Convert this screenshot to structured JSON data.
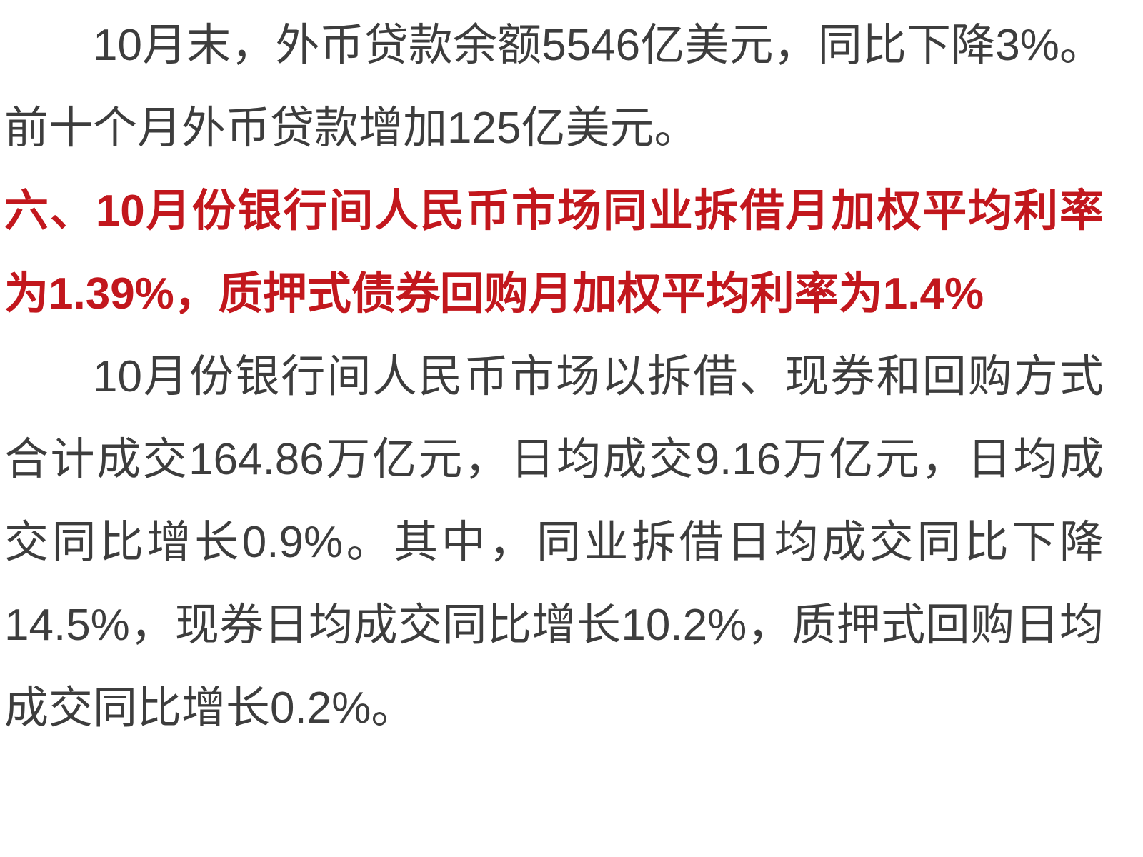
{
  "page": {
    "background_color": "#ffffff",
    "body_text_color": "#3d3d3d",
    "heading_text_color": "#c2171d"
  },
  "article": {
    "paragraphs": {
      "p1": {
        "text": "10月末，外币贷款余额5546亿美元，同比下降3%。前十个月外币贷款增加125亿美元。"
      },
      "heading": {
        "text": "六、10月份银行间人民币市场同业拆借月加权平均利率为1.39%，质押式债券回购月加权平均利率为1.4%"
      },
      "p2": {
        "text": "10月份银行间人民币市场以拆借、现券和回购方式合计成交164.86万亿元，日均成交9.16万亿元，日均成交同比增长0.9%。其中，同业拆借日均成交同比下降14.5%，现券日均成交同比增长10.2%，质押式回购日均成交同比增长0.2%。"
      }
    },
    "key_figures": {
      "foreign_currency_loan_balance": "5546亿美元",
      "foreign_currency_loan_yoy": "-3%",
      "foreign_currency_loan_increase_first_ten_months": "125亿美元",
      "interbank_lending_weighted_avg_rate": "1.39%",
      "pledged_bond_repo_weighted_avg_rate": "1.4%",
      "total_turnover": "164.86万亿元",
      "daily_avg_turnover": "9.16万亿元",
      "daily_avg_turnover_yoy": "+0.9%",
      "interbank_lending_daily_avg_yoy": "-14.5%",
      "cash_bond_daily_avg_yoy": "+10.2%",
      "pledged_repo_daily_avg_yoy": "+0.2%"
    }
  }
}
